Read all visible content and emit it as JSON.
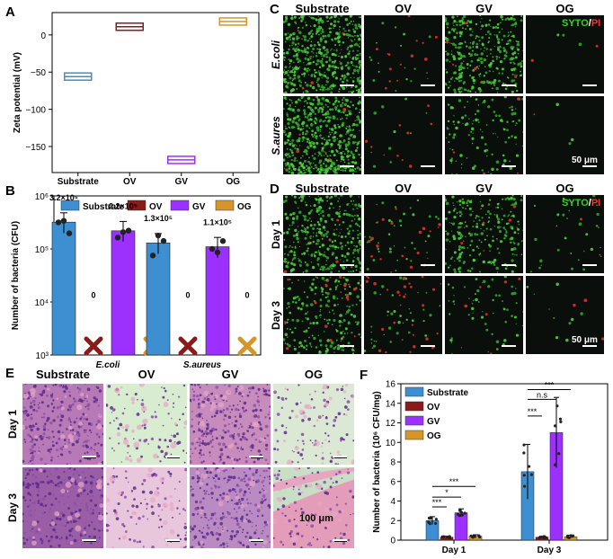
{
  "panels": {
    "A": {
      "label": "A"
    },
    "B": {
      "label": "B"
    },
    "C": {
      "label": "C"
    },
    "D": {
      "label": "D"
    },
    "E": {
      "label": "E"
    },
    "F": {
      "label": "F"
    }
  },
  "groups": [
    "Substrate",
    "OV",
    "GV",
    "OG"
  ],
  "colors": {
    "Substrate": "#3d8fd1",
    "OV": "#8b1a1a",
    "GV": "#9b30ff",
    "OG": "#d4962a"
  },
  "micro_c": {
    "cols": [
      "Substrate",
      "OV",
      "GV",
      "OG"
    ],
    "rows": [
      "E.coli",
      "S.aures"
    ],
    "stain": {
      "green": "SYTO",
      "sep": "/",
      "red": "PI"
    },
    "scale": "50 μm"
  },
  "micro_d": {
    "cols": [
      "Substrate",
      "OV",
      "GV",
      "OG"
    ],
    "rows": [
      "Day 1",
      "Day 3"
    ],
    "stain": {
      "green": "SYTO",
      "sep": "/",
      "red": "PI"
    },
    "scale": "50 μm"
  },
  "histo_e": {
    "cols": [
      "Substrate",
      "OV",
      "GV",
      "OG"
    ],
    "rows": [
      "Day 1",
      "Day 3"
    ],
    "scale": "100 μm"
  },
  "chart_data": [
    {
      "panel": "A",
      "type": "box",
      "categories": [
        "Substrate",
        "OV",
        "GV",
        "OG"
      ],
      "values": [
        -56,
        11,
        -168,
        18
      ],
      "ylabel": "Zeta potential (mV)",
      "ylim": [
        -185,
        30
      ],
      "yticks": [
        0,
        -50,
        -100,
        -150
      ]
    },
    {
      "panel": "B",
      "type": "bar",
      "scale": "log",
      "categories": [
        "E.coli",
        "S.aureus"
      ],
      "series": [
        {
          "name": "Substrate",
          "values": [
            320000,
            130000
          ]
        },
        {
          "name": "OV",
          "values": [
            0,
            0
          ]
        },
        {
          "name": "GV",
          "values": [
            220000,
            110000
          ]
        },
        {
          "name": "OG",
          "values": [
            0,
            0
          ]
        }
      ],
      "bar_labels": [
        "3.2×10⁵",
        "0",
        "2.2×10⁵",
        "0",
        "1.3×10⁵",
        "0",
        "1.1×10⁵",
        "0"
      ],
      "ylabel": "Number of bacteria (CFU)",
      "ylim": [
        1000,
        1000000
      ],
      "yticks": [
        "10³",
        "10⁴",
        "10⁵",
        "10⁶"
      ],
      "legend": "top"
    },
    {
      "panel": "F",
      "type": "bar",
      "categories": [
        "Day 1",
        "Day 3"
      ],
      "series": [
        {
          "name": "Substrate",
          "values": [
            2.0,
            7.0
          ]
        },
        {
          "name": "OV",
          "values": [
            0.3,
            0.3
          ]
        },
        {
          "name": "GV",
          "values": [
            2.8,
            11.0
          ]
        },
        {
          "name": "OG",
          "values": [
            0.4,
            0.35
          ]
        }
      ],
      "errors": [
        [
          0.4,
          2.8
        ],
        [
          0.1,
          0.1
        ],
        [
          0.4,
          3.6
        ],
        [
          0.15,
          0.15
        ]
      ],
      "significance": [
        {
          "day": "Day 1",
          "marks": [
            "***",
            "*",
            "***"
          ]
        },
        {
          "day": "Day 3",
          "marks": [
            "***",
            "n.s",
            "***"
          ]
        }
      ],
      "ylabel": "Number of bacteria (10⁶ CFU/mg)",
      "ylim": [
        0,
        16
      ],
      "yticks": [
        0,
        2,
        4,
        6,
        8,
        10,
        12,
        14,
        16
      ],
      "legend": "top-left"
    }
  ]
}
